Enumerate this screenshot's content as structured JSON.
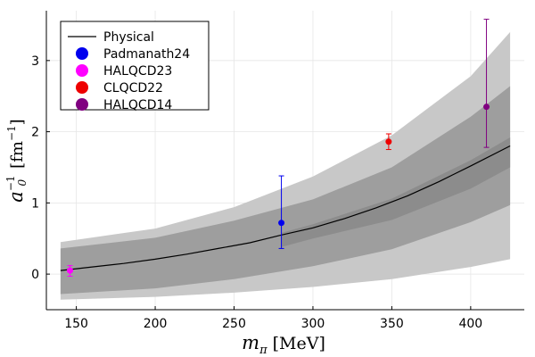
{
  "chart_data": {
    "type": "line",
    "xlabel": {
      "main": "m",
      "sub": "π",
      "unit": "[MeV]"
    },
    "ylabel": {
      "main": "a",
      "sub": "0",
      "sup": "−1",
      "unit_open": "[fm",
      "unit_sup": "−1",
      "unit_close": "]"
    },
    "xlim": [
      131,
      434
    ],
    "ylim": [
      -0.5,
      3.7
    ],
    "x_ticks": [
      150,
      200,
      250,
      300,
      350,
      400
    ],
    "y_ticks": [
      0,
      1,
      2,
      3
    ],
    "grid": true,
    "legend_position": "top-left",
    "bands": [
      {
        "name": "outer band",
        "color": "#c8c8c8",
        "x": [
          140,
          200,
          250,
          300,
          350,
          400,
          425
        ],
        "lower": [
          -0.36,
          -0.32,
          -0.26,
          -0.18,
          -0.07,
          0.1,
          0.21
        ],
        "upper": [
          0.45,
          0.64,
          0.94,
          1.37,
          1.95,
          2.78,
          3.4
        ]
      },
      {
        "name": "inner band",
        "color": "#9e9e9e",
        "x": [
          140,
          200,
          250,
          300,
          350,
          400,
          425
        ],
        "lower": [
          -0.28,
          -0.2,
          -0.07,
          0.11,
          0.35,
          0.73,
          0.97
        ],
        "upper": [
          0.36,
          0.51,
          0.75,
          1.05,
          1.5,
          2.21,
          2.64
        ]
      },
      {
        "name": "dark band",
        "color": "#8c8c8c",
        "x": [
          280,
          300,
          350,
          400,
          425
        ],
        "lower": [
          0.38,
          0.5,
          0.76,
          1.2,
          1.5
        ],
        "upper": [
          0.58,
          0.7,
          1.06,
          1.6,
          1.92
        ]
      }
    ],
    "series": [
      {
        "name": "Physical",
        "kind": "line",
        "color": "#000000",
        "x": [
          140,
          160,
          180,
          200,
          220,
          240,
          260,
          280,
          300,
          320,
          340,
          360,
          380,
          400,
          425
        ],
        "y": [
          0.05,
          0.1,
          0.15,
          0.21,
          0.28,
          0.36,
          0.44,
          0.55,
          0.65,
          0.78,
          0.93,
          1.1,
          1.3,
          1.52,
          1.8
        ]
      },
      {
        "name": "Padmanath24",
        "kind": "point",
        "color": "#0000ee",
        "x": 280,
        "y": 0.72,
        "err_low": 0.36,
        "err_high": 1.38
      },
      {
        "name": "HALQCD23",
        "kind": "point",
        "color": "#ff00ff",
        "x": 146,
        "y": 0.05,
        "err_low": -0.03,
        "err_high": 0.12
      },
      {
        "name": "CLQCD22",
        "kind": "point",
        "color": "#ee0000",
        "x": 348,
        "y": 1.86,
        "err_low": 1.75,
        "err_high": 1.97
      },
      {
        "name": "HALQCD14",
        "kind": "point",
        "color": "#800080",
        "x": 410,
        "y": 2.35,
        "err_low": 1.78,
        "err_high": 3.58
      }
    ],
    "legend": [
      "Physical",
      "Padmanath24",
      "HALQCD23",
      "CLQCD22",
      "HALQCD14"
    ]
  }
}
